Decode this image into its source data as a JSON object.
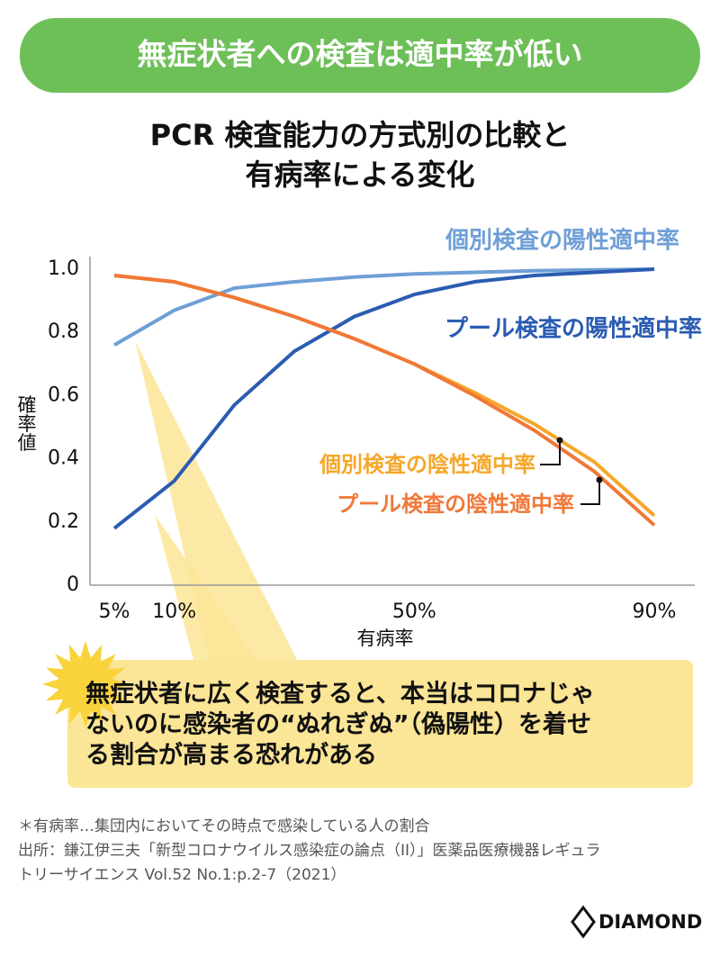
{
  "banner": "無症状者への検査は適中率が低い",
  "chart_data": {
    "type": "line",
    "title": [
      "PCR 検査能力の方式別の比較と",
      "有病率による変化"
    ],
    "y_label": "確率値",
    "x_label": "有病率",
    "categories": [
      "5%",
      "10%",
      null,
      null,
      null,
      "50%",
      null,
      null,
      null,
      "90%"
    ],
    "series": [
      {
        "name": "個別検査の陽性適中率",
        "color": "#6f9fd6",
        "values": [
          0.76,
          0.87,
          0.94,
          0.96,
          0.975,
          0.985,
          0.99,
          0.995,
          0.998,
          1.0
        ]
      },
      {
        "name": "プール検査の陽性適中率",
        "color": "#2b5cb2",
        "values": [
          0.18,
          0.33,
          0.57,
          0.74,
          0.85,
          0.92,
          0.96,
          0.98,
          0.99,
          1.0
        ]
      },
      {
        "name": "個別検査の陰性適中率",
        "color": "#f5a72a",
        "values": [
          0.98,
          0.96,
          0.91,
          0.85,
          0.78,
          0.7,
          0.61,
          0.51,
          0.39,
          0.22
        ]
      },
      {
        "name": "プール検査の陰性適中率",
        "color": "#f07838",
        "values": [
          0.98,
          0.96,
          0.91,
          0.85,
          0.78,
          0.7,
          0.6,
          0.49,
          0.36,
          0.19
        ]
      }
    ],
    "ylim": [
      0,
      1.04
    ],
    "yticks": [
      0,
      0.2,
      0.4,
      0.6,
      0.8,
      {
        "value": 1,
        "label": "1.0"
      }
    ]
  },
  "callout": [
    "無症状者に広く検査すると、本当はコロナじゃ",
    "ないのに感染者の“ぬれぎぬ”（偽陽性）を着せ",
    "る割合が高まる恐れがある"
  ],
  "notes": [
    "＊有病率…集団内においてその時点で感染している人の割合",
    "出所：鎌江伊三夫「新型コロナウイルス感染症の論点（II）」医薬品医療機器レギュラ",
    "トリーサイエンス Vol.52 No.1:p.2-7（2021）"
  ],
  "logo": "DIAMOND"
}
